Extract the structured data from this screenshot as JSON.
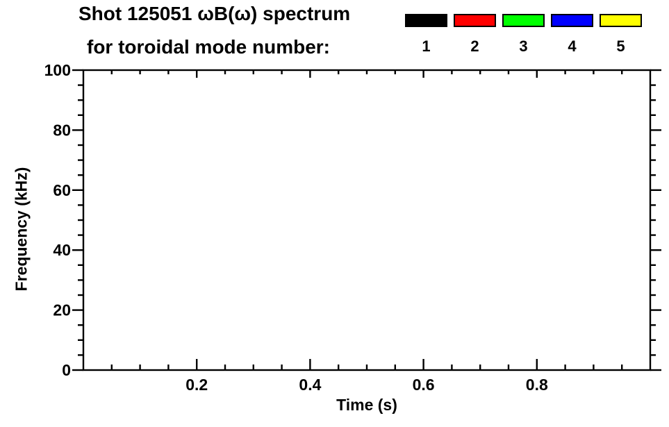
{
  "window": {
    "background": "#ffffff"
  },
  "title": {
    "line1": "Shot 125051 ωB(ω) spectrum",
    "line2": "for toroidal mode number:"
  },
  "legend": {
    "modes": [
      {
        "label": "1",
        "color": "#000000"
      },
      {
        "label": "2",
        "color": "#ff0000"
      },
      {
        "label": "3",
        "color": "#00ff00"
      },
      {
        "label": "4",
        "color": "#0000ff"
      },
      {
        "label": "5",
        "color": "#ffff00"
      }
    ]
  },
  "chart_data": {
    "type": "scatter",
    "title": "Shot 125051 ωB(ω) spectrum for toroidal mode number: 1 2 3 4 5",
    "xlabel": "Time (s)",
    "ylabel": "Frequency (kHz)",
    "xlim": [
      0.0,
      1.0
    ],
    "ylim": [
      0,
      100
    ],
    "x_major_ticks": [
      0.2,
      0.4,
      0.6,
      0.8
    ],
    "x_tick_labels": [
      "0.2",
      "0.4",
      "0.6",
      "0.8"
    ],
    "x_minor_tick_step": 0.05,
    "y_major_ticks": [
      0,
      20,
      40,
      60,
      80,
      100
    ],
    "y_tick_labels": [
      "0",
      "20",
      "40",
      "60",
      "80",
      "100"
    ],
    "y_minor_tick_step": 5,
    "grid": false,
    "legend_position": "top-right-above-plot",
    "axis_color": "#000000",
    "plot_background": "#ffffff",
    "series": [
      {
        "name": "1",
        "color": "#000000",
        "points": []
      },
      {
        "name": "2",
        "color": "#ff0000",
        "points": []
      },
      {
        "name": "3",
        "color": "#00ff00",
        "points": []
      },
      {
        "name": "4",
        "color": "#0000ff",
        "points": []
      },
      {
        "name": "5",
        "color": "#ffff00",
        "points": []
      }
    ]
  }
}
